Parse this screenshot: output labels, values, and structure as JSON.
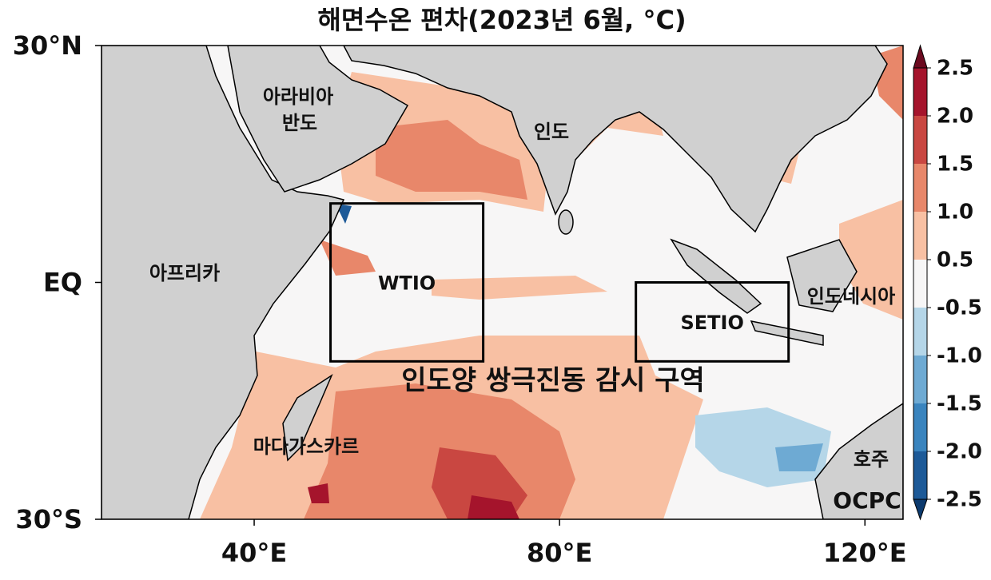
{
  "chart_data": {
    "type": "map",
    "title": "해면수온 편차(2023년 6월, °C)",
    "xlim": [
      20,
      125
    ],
    "ylim": [
      -30,
      30
    ],
    "xticks": [
      {
        "value": 40,
        "label": "40°E"
      },
      {
        "value": 80,
        "label": "80°E"
      },
      {
        "value": 120,
        "label": "120°E"
      }
    ],
    "yticks": [
      {
        "value": 30,
        "label": "30°N"
      },
      {
        "value": 0,
        "label": "EQ"
      },
      {
        "value": -30,
        "label": "30°S"
      }
    ],
    "boxes": [
      {
        "label": "WTIO",
        "lon": [
          50,
          70
        ],
        "lat": [
          -10,
          10
        ]
      },
      {
        "label": "SETIO",
        "lon": [
          90,
          110
        ],
        "lat": [
          -10,
          0
        ]
      }
    ],
    "annotation": "인도양 쌍극진동 감시 구역",
    "place_labels": [
      "아라비아",
      "반도",
      "인도",
      "아프리카",
      "인도네시아",
      "마다가스카르",
      "호주"
    ],
    "logo": "OCPC",
    "colorbar": {
      "levels": [
        -2.5,
        {
          "value": -2,
          "label": "-2.0"
        },
        -1.5,
        {
          "value": -1,
          "label": "-1.0"
        },
        -0.5,
        0.5,
        {
          "value": 1,
          "label": "1.0"
        },
        1.5,
        {
          "value": 2,
          "label": "2.0"
        },
        2.5
      ],
      "colors": [
        "#0c3a6e",
        "#1d5a98",
        "#3a84be",
        "#6eaad3",
        "#b5d6e8",
        "#f7f6f6",
        "#f8c0a3",
        "#e8876a",
        "#c94741",
        "#a5142c",
        "#6b0a1f"
      ]
    }
  }
}
